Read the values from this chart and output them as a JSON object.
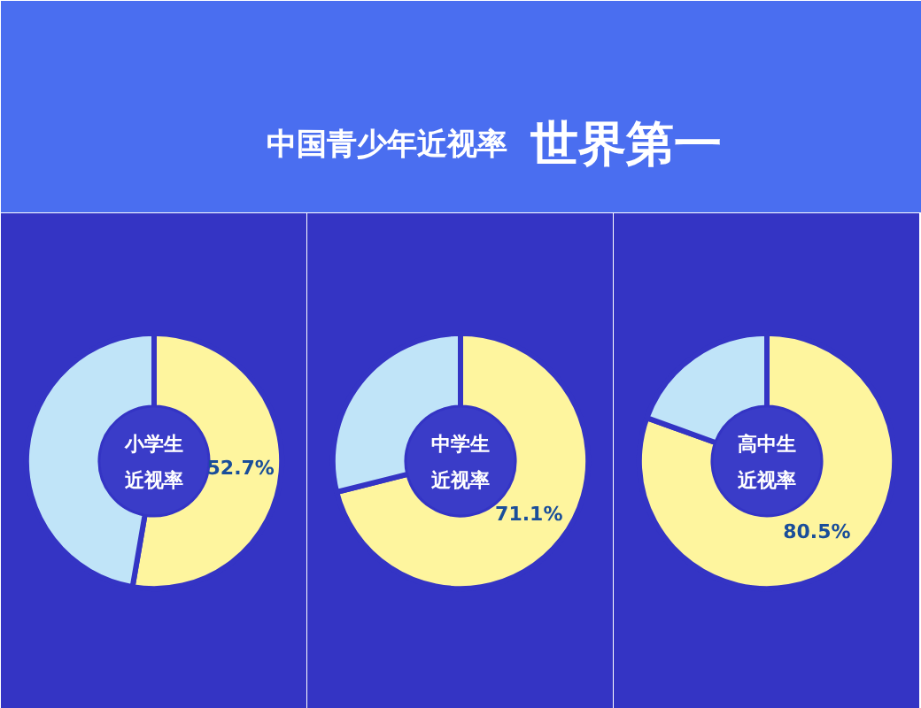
{
  "chart_data": [
    {
      "type": "other",
      "title": "中国青少年近视率",
      "subtitle": "世界第一"
    },
    {
      "type": "donut",
      "title": "小学生近视率",
      "categories": [
        null,
        null
      ],
      "values": [
        52.7,
        47.3
      ],
      "colors": [
        "#fef59e",
        "#c0e4f8"
      ],
      "value_labels": [
        "52.7%",
        null
      ]
    },
    {
      "type": "donut",
      "title": "中学生近视率",
      "categories": [
        null,
        null
      ],
      "values": [
        71.1,
        28.9
      ],
      "colors": [
        "#fef59e",
        "#c0e4f8"
      ],
      "value_labels": [
        "71.1%",
        null
      ]
    },
    {
      "type": "donut",
      "title": "高中生近视率",
      "categories": [
        null,
        null
      ],
      "values": [
        80.5,
        19.5
      ],
      "colors": [
        "#fef59e",
        "#c0e4f8"
      ],
      "value_labels": [
        "80.5%",
        null
      ]
    }
  ]
}
